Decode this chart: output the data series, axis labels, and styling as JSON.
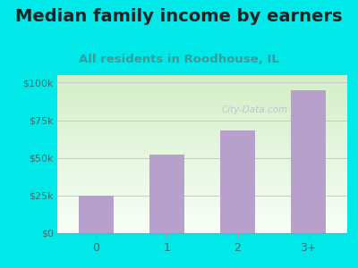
{
  "title": "Median family income by earners",
  "subtitle": "All residents in Roodhouse, IL",
  "categories": [
    "0",
    "1",
    "2",
    "3+"
  ],
  "values": [
    25000,
    52000,
    68000,
    95000
  ],
  "bar_color": "#b8a0cc",
  "title_color": "#222222",
  "subtitle_color": "#3a9a9a",
  "bg_color": "#00e8e8",
  "plot_bg_top": "#d4eec8",
  "plot_bg_bottom": "#f8fff8",
  "yticks": [
    0,
    25000,
    50000,
    75000,
    100000
  ],
  "ytick_labels": [
    "$0",
    "$25k",
    "$50k",
    "$75k",
    "$100k"
  ],
  "ylim": [
    0,
    105000
  ],
  "grid_color": "#c8c8c8",
  "watermark": "City-Data.com",
  "watermark_color": "#aabccc",
  "tick_label_color": "#3a7070",
  "title_fontsize": 14,
  "subtitle_fontsize": 9.5
}
